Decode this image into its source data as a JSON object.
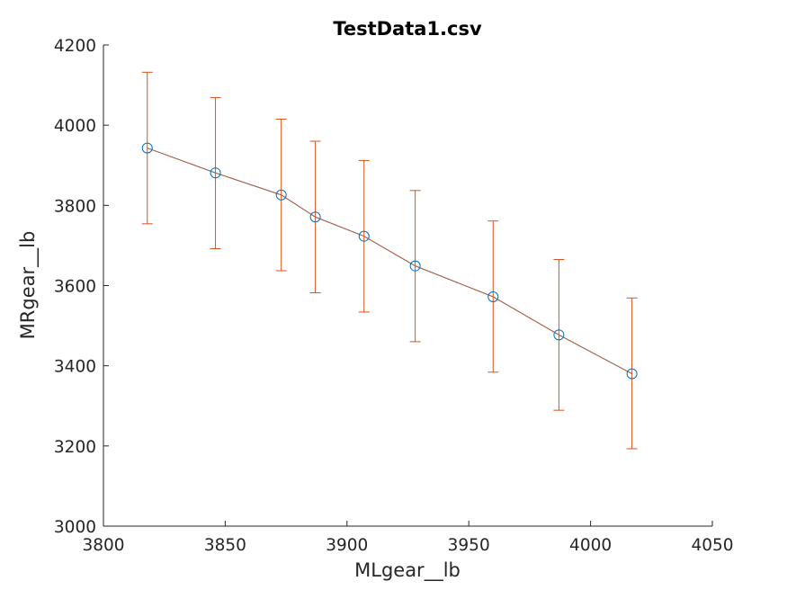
{
  "chart_data": {
    "type": "line",
    "title": "TestData1.csv",
    "xlabel": "MLgear__lb",
    "ylabel": "MRgear__lb",
    "xlim": [
      3800,
      4050
    ],
    "ylim": [
      3000,
      4200
    ],
    "xticks": [
      "3800",
      "3850",
      "3900",
      "3950",
      "4000",
      "4050"
    ],
    "yticks": [
      "3000",
      "3200",
      "3400",
      "3600",
      "3800",
      "4000",
      "4200"
    ],
    "grid": false,
    "series": [
      {
        "color": "#0072bd",
        "marker": "circle",
        "x": [
          3818,
          3846,
          3873,
          3887,
          3907,
          3928,
          3960,
          3987,
          4017
        ],
        "y": [
          3943,
          3881,
          3826,
          3771,
          3723,
          3649,
          3572,
          3477,
          3380
        ]
      },
      {
        "color": "#d95319",
        "error_bars": true,
        "x": [
          3818,
          3846,
          3873,
          3887,
          3907,
          3928,
          3960,
          3987,
          4017
        ],
        "y": [
          3943,
          3881,
          3826,
          3771,
          3723,
          3649,
          3572,
          3477,
          3380
        ],
        "y_lower": [
          3754,
          3692,
          3637,
          3582,
          3534,
          3460,
          3384,
          3289,
          3193
        ],
        "y_upper": [
          4132,
          4069,
          4015,
          3960,
          3912,
          3837,
          3761,
          3665,
          3569
        ]
      }
    ]
  }
}
